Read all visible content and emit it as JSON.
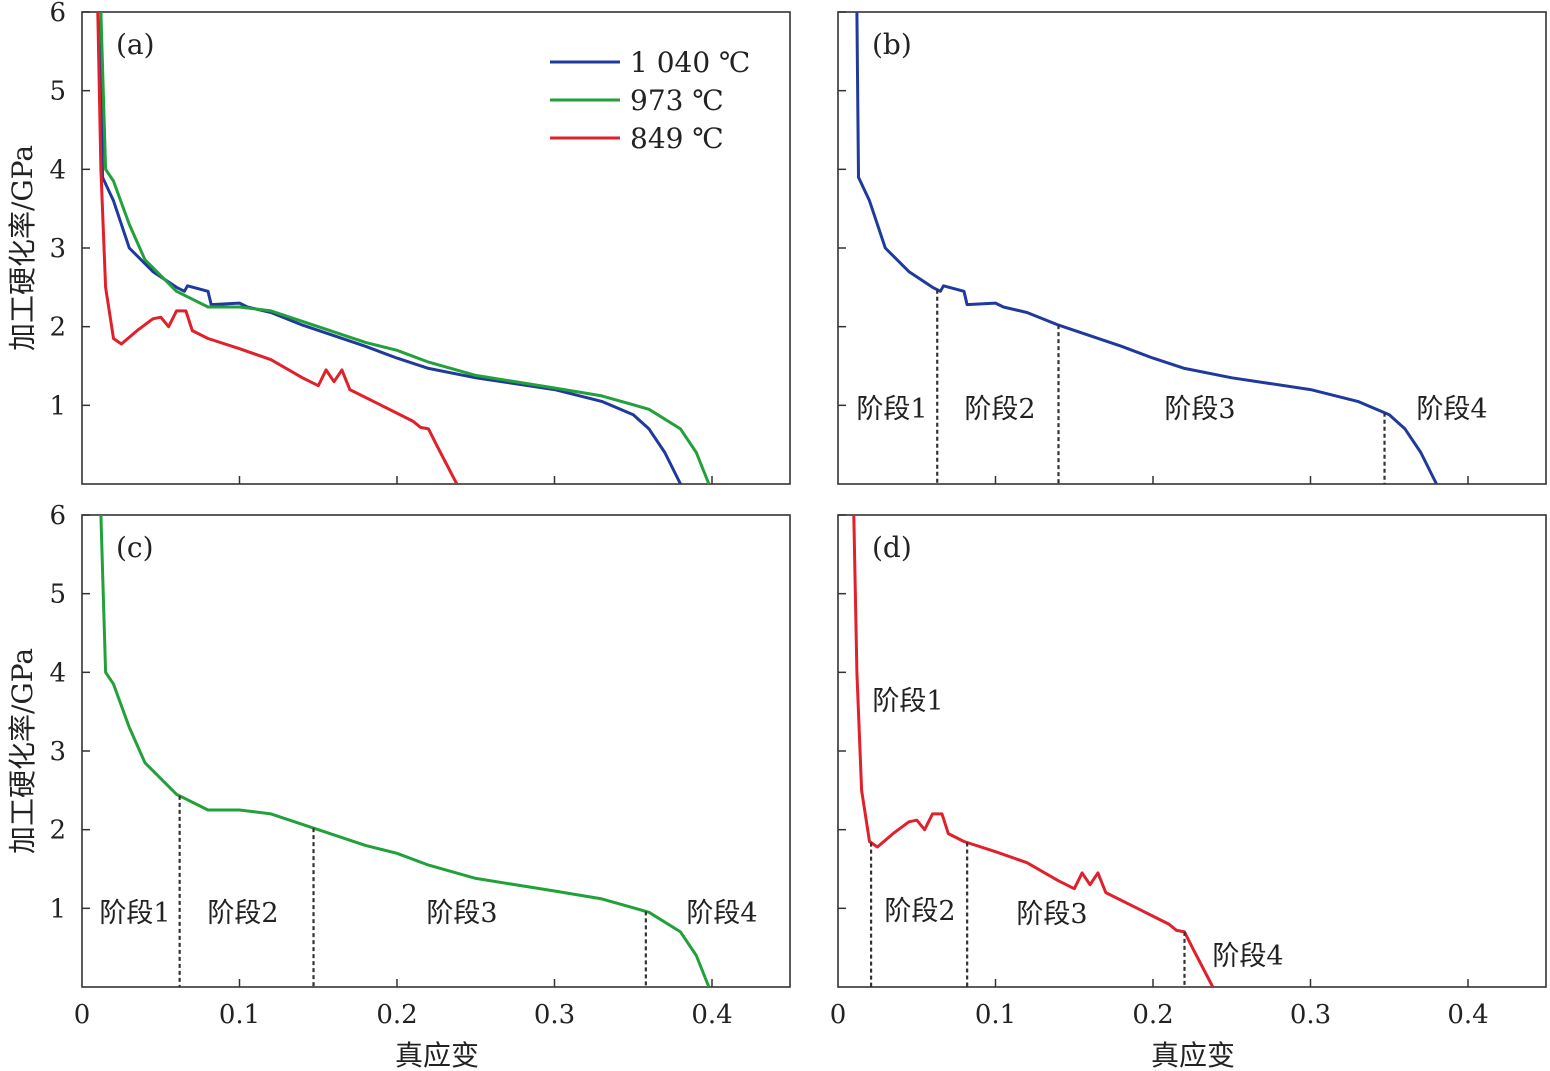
{
  "chart_data": [
    {
      "type": "line",
      "panel": "(a)",
      "xlabel": "",
      "ylabel": "加工硬化率/GPa",
      "xlim": [
        0,
        0.45
      ],
      "ylim": [
        0,
        6
      ],
      "yticks": [
        "1",
        "2",
        "3",
        "4",
        "5",
        "6"
      ],
      "legend_position": "top-right",
      "series": [
        {
          "name": "1 040 ℃",
          "color": "#1f3a9c",
          "x": [
            0.012,
            0.013,
            0.02,
            0.03,
            0.045,
            0.06,
            0.065,
            0.067,
            0.08,
            0.082,
            0.1,
            0.105,
            0.12,
            0.14,
            0.18,
            0.2,
            0.22,
            0.25,
            0.3,
            0.33,
            0.35,
            0.36,
            0.37,
            0.38
          ],
          "y": [
            6,
            3.9,
            3.6,
            3.0,
            2.7,
            2.5,
            2.45,
            2.52,
            2.45,
            2.28,
            2.3,
            2.25,
            2.18,
            2.02,
            1.75,
            1.6,
            1.47,
            1.35,
            1.2,
            1.05,
            0.88,
            0.7,
            0.4,
            0
          ]
        },
        {
          "name": "973 ℃",
          "color": "#22a03a",
          "x": [
            0.012,
            0.015,
            0.02,
            0.03,
            0.04,
            0.06,
            0.08,
            0.1,
            0.12,
            0.15,
            0.18,
            0.2,
            0.22,
            0.25,
            0.3,
            0.33,
            0.36,
            0.38,
            0.39,
            0.398
          ],
          "y": [
            6,
            4.0,
            3.85,
            3.3,
            2.85,
            2.45,
            2.25,
            2.25,
            2.2,
            2.0,
            1.8,
            1.7,
            1.55,
            1.38,
            1.22,
            1.12,
            0.95,
            0.7,
            0.4,
            0
          ]
        },
        {
          "name": "849 ℃",
          "color": "#e0202a",
          "x": [
            0.01,
            0.012,
            0.015,
            0.02,
            0.025,
            0.035,
            0.045,
            0.05,
            0.055,
            0.06,
            0.066,
            0.07,
            0.08,
            0.1,
            0.12,
            0.14,
            0.15,
            0.155,
            0.16,
            0.165,
            0.17,
            0.19,
            0.21,
            0.215,
            0.22,
            0.225,
            0.238
          ],
          "y": [
            6,
            4,
            2.5,
            1.85,
            1.78,
            1.95,
            2.1,
            2.12,
            2.0,
            2.2,
            2.2,
            1.95,
            1.85,
            1.72,
            1.58,
            1.35,
            1.25,
            1.45,
            1.3,
            1.45,
            1.2,
            1.0,
            0.8,
            0.72,
            0.7,
            0.5,
            0
          ]
        }
      ]
    },
    {
      "type": "line",
      "panel": "(b)",
      "xlim": [
        0,
        0.45
      ],
      "ylim": [
        0,
        6
      ],
      "series_ref": "1 040 ℃",
      "stage_boundaries": [
        0.063,
        0.14,
        0.347
      ],
      "stages": [
        "阶段1",
        "阶段2",
        "阶段3",
        "阶段4"
      ]
    },
    {
      "type": "line",
      "panel": "(c)",
      "xlabel": "真应变",
      "ylabel": "加工硬化率/GPa",
      "xlim": [
        0,
        0.45
      ],
      "ylim": [
        0,
        6
      ],
      "xticks": [
        "0",
        "0.1",
        "0.2",
        "0.3",
        "0.4"
      ],
      "yticks": [
        "1",
        "2",
        "3",
        "4",
        "5",
        "6"
      ],
      "series_ref": "973 ℃",
      "stage_boundaries": [
        0.062,
        0.147,
        0.358
      ],
      "stages": [
        "阶段1",
        "阶段2",
        "阶段3",
        "阶段4"
      ]
    },
    {
      "type": "line",
      "panel": "(d)",
      "xlabel": "真应变",
      "xlim": [
        0,
        0.45
      ],
      "ylim": [
        0,
        6
      ],
      "xticks": [
        "0",
        "0.1",
        "0.2",
        "0.3",
        "0.4"
      ],
      "series_ref": "849 ℃",
      "stage_boundaries": [
        0.021,
        0.082,
        0.22
      ],
      "stages": [
        "阶段1",
        "阶段2",
        "阶段3",
        "阶段4"
      ]
    }
  ]
}
